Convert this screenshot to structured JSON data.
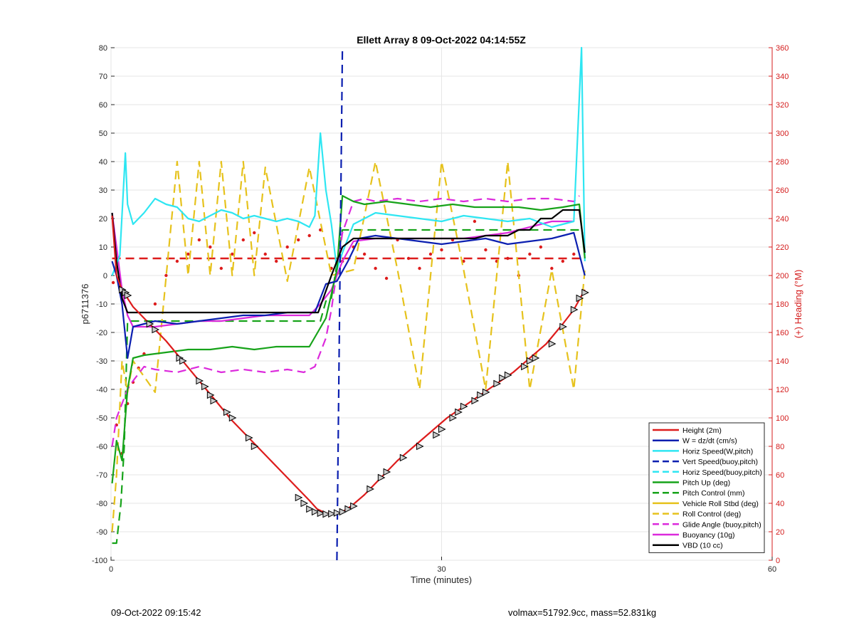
{
  "chart_data": {
    "type": "line",
    "title": "Ellett Array 8 09-Oct-2022 04:14:55Z",
    "xlabel": "Time (minutes)",
    "ylabel": "p6711376",
    "y2label": "(+) Heading (°M)",
    "xlim": [
      0,
      60
    ],
    "ylim": [
      -100,
      80
    ],
    "y2lim": [
      0,
      360
    ],
    "xticks": [
      0,
      30,
      60
    ],
    "yticks": [
      -100,
      -90,
      -80,
      -70,
      -60,
      -50,
      -40,
      -30,
      -20,
      -10,
      0,
      10,
      20,
      30,
      40,
      50,
      60,
      70,
      80
    ],
    "y2ticks": [
      0,
      20,
      40,
      60,
      80,
      100,
      120,
      140,
      160,
      180,
      200,
      220,
      240,
      260,
      280,
      300,
      320,
      340,
      360
    ],
    "grid": true,
    "legend_position": "bottom-right",
    "series": [
      {
        "name": "Height (2m)",
        "color": "#dd1c1c",
        "style": "solid",
        "x": [
          0.1,
          0.5,
          1.0,
          1.5,
          2.0,
          3.5,
          5.0,
          6.5,
          8.0,
          9.5,
          11.0,
          12.5,
          14.0,
          15.5,
          17.0,
          18.0,
          18.7,
          19.5,
          20.3,
          21.0,
          21.8,
          23.0,
          24.5,
          26.0,
          27.5,
          29.0,
          30.5,
          32.0,
          33.5,
          35.0,
          36.5,
          38.0,
          39.5,
          41.0,
          42.0,
          43.0
        ],
        "y": [
          21,
          0,
          -5,
          -8,
          -11,
          -17,
          -23,
          -30,
          -37,
          -44,
          -51,
          -57,
          -63,
          -69,
          -75,
          -79,
          -82,
          -83.5,
          -83.8,
          -83,
          -81,
          -77,
          -71,
          -65,
          -60,
          -55,
          -50,
          -46,
          -42,
          -38,
          -34,
          -29,
          -24,
          -17,
          -12,
          -5
        ]
      },
      {
        "name": "W = dz/dt (cm/s)",
        "color": "#0b1fb0",
        "style": "solid",
        "x": [
          0.1,
          0.5,
          1.0,
          1.5,
          2.0,
          3.0,
          4.0,
          6.0,
          8.0,
          10.0,
          12.0,
          14.0,
          16.0,
          17.5,
          18.5,
          19.5,
          20.5,
          21.5,
          22.5,
          24.0,
          26.0,
          28.0,
          30.0,
          32.0,
          34.0,
          36.0,
          38.0,
          40.0,
          42.0,
          43.0
        ],
        "y": [
          5,
          0,
          -10,
          -29,
          -18,
          -17,
          -16,
          -17,
          -16,
          -15,
          -14,
          -14,
          -13,
          -13,
          -13,
          -3,
          -2,
          5,
          13,
          14,
          13,
          12,
          11,
          12,
          13,
          11,
          12,
          13,
          15,
          0
        ]
      },
      {
        "name": "Horiz Speed(W,pitch)",
        "color": "#2ee6f2",
        "style": "solid",
        "x": [
          0.1,
          0.8,
          1.3,
          1.5,
          2.0,
          3.0,
          4.0,
          5.0,
          6.0,
          7.0,
          8.0,
          9.0,
          10.0,
          11.0,
          12.0,
          13.0,
          14.0,
          15.0,
          16.0,
          17.0,
          18.0,
          18.5,
          19.0,
          19.5,
          20.0,
          20.5,
          21.0,
          22.0,
          24.0,
          26.0,
          28.0,
          30.0,
          32.0,
          34.0,
          36.0,
          38.0,
          40.0,
          42.0,
          42.7,
          43.0
        ],
        "y": [
          0,
          7,
          43,
          25,
          18,
          22,
          27,
          25,
          24,
          20,
          19,
          21,
          23,
          22,
          20,
          21,
          20,
          19,
          20,
          19,
          17,
          21,
          50,
          30,
          18,
          2,
          8,
          18,
          22,
          21,
          20,
          19,
          21,
          20,
          19,
          20,
          17,
          19,
          80,
          5
        ]
      },
      {
        "name": "Vert Speed(buoy,pitch)",
        "color": "#0b1fb0",
        "style": "dashed",
        "x": [
          20.5,
          21.0
        ],
        "y": [
          -100,
          80
        ]
      },
      {
        "name": "Horiz Speed(buoy,pitch)",
        "color": "#2ee6f2",
        "style": "dashed",
        "x": [],
        "y": []
      },
      {
        "name": "Pitch Up (deg)",
        "color": "#17a31a",
        "style": "solid",
        "x": [
          0.1,
          0.5,
          1.0,
          1.5,
          2.0,
          3.0,
          5.0,
          7.0,
          9.0,
          11.0,
          13.0,
          15.0,
          17.0,
          18.0,
          19.5,
          20.5,
          21.0,
          22.0,
          23.0,
          25.0,
          27.0,
          29.0,
          31.0,
          33.0,
          35.0,
          37.0,
          39.0,
          41.0,
          42.5,
          43.0
        ],
        "y": [
          -73,
          -58,
          -65,
          -40,
          -29,
          -28,
          -27,
          -26,
          -26,
          -25,
          -26,
          -25,
          -25,
          -25,
          -15,
          2,
          28,
          26,
          25,
          26,
          25,
          24,
          25,
          24,
          24,
          24,
          23,
          24,
          25,
          6
        ]
      },
      {
        "name": "Pitch Control (mm)",
        "color": "#17a31a",
        "style": "dashed",
        "x": [
          0.1,
          0.5,
          0.9,
          1.2,
          1.5,
          2.0,
          19.0,
          19.5,
          20.0,
          21.0,
          22.0,
          41.0,
          42.5,
          43.0
        ],
        "y": [
          -94,
          -94,
          -80,
          -60,
          -16,
          -16,
          -16,
          -9,
          -8,
          16,
          16,
          16,
          16,
          16
        ]
      },
      {
        "name": "Vehicle Roll Stbd (deg)",
        "color": "#e6c21c",
        "style": "solid",
        "x": [
          0.1,
          0.6,
          0.8,
          1.0,
          1.3,
          2.0,
          3.0,
          4.0,
          5.0,
          6.0,
          7.0,
          8.0,
          9.0,
          10.0,
          11.0,
          12.0,
          13.0,
          14.0,
          15.0,
          16.0,
          17.0,
          18.0,
          19.0,
          20.0,
          22.0,
          24.0,
          26.0,
          28.0,
          30.0,
          32.0,
          34.0,
          36.0,
          38.0,
          40.0,
          42.0,
          43.0
        ],
        "y": [
          -60,
          -100,
          -40,
          30,
          -20,
          -15,
          -20,
          0,
          -5,
          -10,
          2,
          0,
          -5,
          2,
          -3,
          0,
          3,
          0,
          -2,
          0,
          -3,
          0,
          2,
          0,
          -2,
          3,
          0,
          -5,
          2,
          -8,
          3,
          -3,
          -6,
          2,
          -5,
          0
        ]
      },
      {
        "name": "Roll Control (deg)",
        "color": "#e6c21c",
        "style": "dashed",
        "x": [
          0.1,
          0.5,
          1.0,
          1.5,
          2.0,
          4.0,
          6.0,
          7.0,
          8.0,
          9.0,
          10.0,
          11.0,
          12.0,
          13.0,
          14.0,
          16.0,
          18.0,
          20.0,
          22.0,
          24.0,
          26.0,
          28.0,
          30.0,
          32.0,
          34.0,
          36.0,
          38.0,
          40.0,
          42.0,
          43.0
        ],
        "y": [
          -90,
          -70,
          -30,
          -41,
          -30,
          -41,
          40,
          0,
          40,
          0,
          40,
          0,
          40,
          0,
          38,
          -2,
          38,
          0,
          2,
          40,
          2,
          -40,
          40,
          2,
          -40,
          40,
          -40,
          2,
          -40,
          2
        ]
      },
      {
        "name": "Glide Angle (buoy,pitch)",
        "color": "#dc2adc",
        "style": "dashed",
        "x": [
          0.1,
          0.5,
          1.0,
          1.5,
          2.0,
          3.0,
          4.0,
          6.0,
          8.0,
          10.0,
          12.0,
          14.0,
          16.0,
          17.5,
          18.5,
          19.5,
          20.0,
          21.0,
          22.0,
          23.0,
          24.0,
          26.0,
          28.0,
          30.0,
          32.0,
          34.0,
          36.0,
          38.0,
          40.0,
          42.0,
          42.5
        ],
        "y": [
          -60,
          -50,
          -45,
          -40,
          -37,
          -32,
          -33,
          -34,
          -32,
          -34,
          -33,
          -34,
          -33,
          -34,
          -32,
          -22,
          -12,
          15,
          26,
          27,
          26,
          27,
          26,
          27,
          26,
          27,
          26,
          27,
          27,
          26,
          28
        ]
      },
      {
        "name": "Buoyancy (10g)",
        "color": "#dc2adc",
        "style": "solid",
        "x": [
          0.1,
          0.5,
          1.0,
          1.5,
          2.0,
          4.0,
          6.0,
          8.0,
          10.0,
          12.0,
          14.0,
          16.0,
          18.0,
          19.0,
          20.0,
          21.0,
          22.0,
          24.0,
          26.0,
          28.0,
          30.0,
          32.0,
          34.0,
          36.0,
          38.0,
          40.0,
          42.0
        ],
        "y": [
          22,
          10,
          -5,
          -14,
          -18,
          -18,
          -17,
          -16,
          -16,
          -15,
          -14,
          -14,
          -14,
          -10,
          -5,
          5,
          12,
          13,
          13,
          13,
          13,
          13,
          14,
          15,
          17,
          19,
          19
        ]
      },
      {
        "name": "VBD (10 cc)",
        "color": "#000000",
        "style": "solid",
        "x": [
          0.1,
          0.5,
          1.0,
          1.5,
          2.0,
          3.0,
          5.0,
          10.0,
          15.0,
          18.0,
          18.8,
          20.0,
          21.0,
          22.0,
          23.0,
          25.0,
          30.0,
          33.0,
          34.0,
          36.0,
          37.0,
          38.0,
          39.0,
          40.0,
          41.0,
          42.5,
          43.0
        ],
        "y": [
          22,
          5,
          -8,
          -13,
          -13,
          -13,
          -13,
          -13,
          -13,
          -13,
          -13,
          0,
          10,
          13,
          13,
          13,
          13,
          13,
          14,
          14,
          16,
          16,
          20,
          20,
          23,
          23,
          8
        ]
      }
    ],
    "heading_series": {
      "color": "#dd1c1c",
      "style": "dashed",
      "axis": "right",
      "x": [
        0.1,
        43.0
      ],
      "y": [
        212,
        212
      ]
    },
    "heading_points": {
      "color": "#dd1c1c",
      "axis": "right",
      "x": [
        0.2,
        0.5,
        1.0,
        1.5,
        2.0,
        2.5,
        3.0,
        4.0,
        5.0,
        6.0,
        7.0,
        8.0,
        9.0,
        10.0,
        11.0,
        12.0,
        13.0,
        14.0,
        15.0,
        16.0,
        17.0,
        18.0,
        19.0,
        20.0,
        21.0,
        22.0,
        23.0,
        24.0,
        25.0,
        26.0,
        27.0,
        28.0,
        29.0,
        30.0,
        31.0,
        32.0,
        33.0,
        34.0,
        35.0,
        36.0,
        37.0,
        38.0,
        39.0,
        40.0,
        41.0,
        42.0
      ],
      "y": [
        195,
        95,
        75,
        110,
        125,
        135,
        145,
        180,
        200,
        210,
        215,
        225,
        220,
        205,
        215,
        225,
        230,
        215,
        210,
        220,
        225,
        228,
        232,
        205,
        210,
        220,
        215,
        205,
        198,
        225,
        212,
        205,
        215,
        218,
        225,
        210,
        238,
        218,
        210,
        212,
        200,
        215,
        220,
        205,
        210,
        215
      ]
    },
    "markers": {
      "style": "triangle",
      "follows": "Height (2m)",
      "x": [
        1.0,
        1.3,
        1.5,
        3.5,
        4.0,
        6.2,
        6.5,
        8.0,
        8.5,
        9.0,
        9.3,
        10.5,
        11.0,
        12.5,
        13.0,
        17.0,
        17.5,
        18.0,
        18.5,
        19.0,
        19.5,
        20.0,
        20.5,
        21.0,
        21.5,
        22.0,
        23.5,
        24.5,
        25.0,
        26.5,
        28.0,
        29.5,
        30.0,
        31.0,
        31.5,
        32.0,
        33.0,
        33.5,
        34.0,
        35.0,
        35.5,
        36.0,
        37.5,
        38.0,
        38.5,
        40.0,
        41.0,
        42.0,
        42.5,
        43.0
      ],
      "y": [
        -5,
        -6,
        -7,
        -17,
        -19,
        -29,
        -30,
        -37,
        -39,
        -42,
        -44,
        -48,
        -50,
        -57,
        -60,
        -78,
        -80,
        -82,
        -83,
        -83.5,
        -83.8,
        -83.7,
        -83.4,
        -83,
        -82,
        -81,
        -75,
        -71,
        -69,
        -64,
        -60,
        -56,
        -54,
        -50,
        -48,
        -46,
        -44,
        -42,
        -41,
        -38,
        -36,
        -35,
        -32,
        -30,
        -29,
        -24,
        -18,
        -12,
        -8,
        -6
      ]
    }
  },
  "footer": {
    "timestamp": "09-Oct-2022 09:15:42",
    "info": "volmax=51792.9cc, mass=52.831kg"
  }
}
